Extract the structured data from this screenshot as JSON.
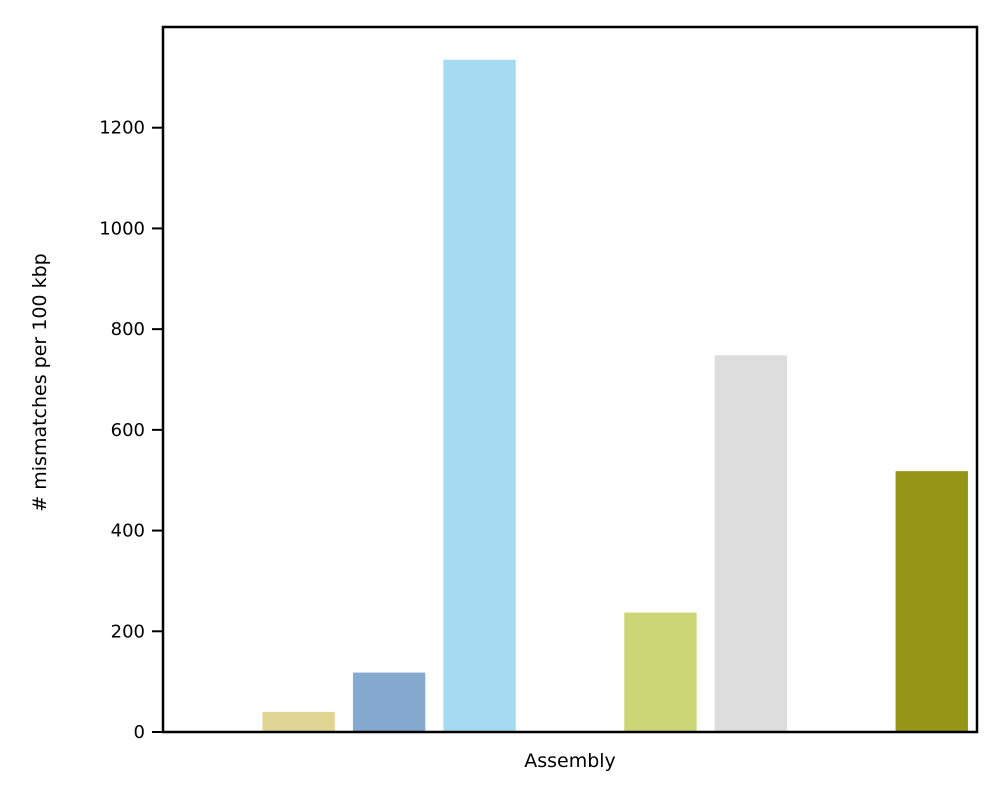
{
  "chart_data": {
    "type": "bar",
    "title": "",
    "xlabel": "Assembly",
    "ylabel": "# mismatches per 100 kbp",
    "ylim": [
      0,
      1400
    ],
    "yticks": [
      0,
      200,
      400,
      600,
      800,
      1000,
      1200
    ],
    "grid": false,
    "legend": "none",
    "x_slots": 9,
    "bars": [
      {
        "slot": 1,
        "value": 40,
        "color": "#e1d594"
      },
      {
        "slot": 2,
        "value": 118,
        "color": "#86a9d0"
      },
      {
        "slot": 3,
        "value": 1335,
        "color": "#a6daf2"
      },
      {
        "slot": 5,
        "value": 237,
        "color": "#ccd576"
      },
      {
        "slot": 6,
        "value": 748,
        "color": "#dddddd"
      },
      {
        "slot": 8,
        "value": 518,
        "color": "#959617"
      }
    ]
  }
}
